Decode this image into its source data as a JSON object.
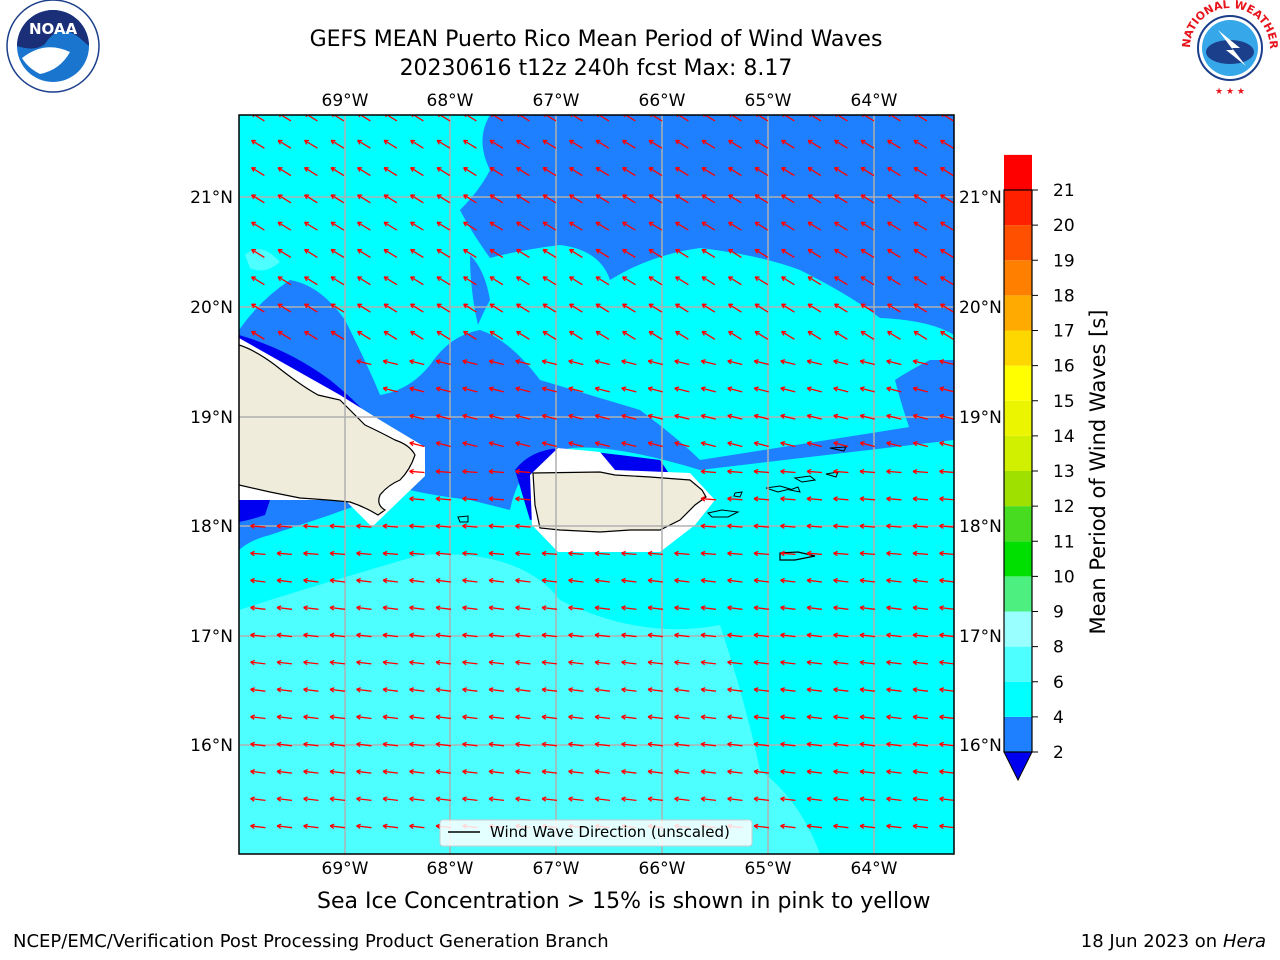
{
  "title": {
    "line1": "GEFS MEAN Puerto Rico Mean Period of Wind Waves",
    "line2": "20230616 t12z 240h fcst   Max: 8.17"
  },
  "logos": {
    "left": "noaa-logo",
    "left_text": "NOAA",
    "right": "national-weather-service-logo",
    "right_text": "NATIONAL WEATHER SERVICE"
  },
  "map": {
    "lon_labels": [
      "69°W",
      "68°W",
      "67°W",
      "66°W",
      "65°W",
      "64°W"
    ],
    "lat_labels": [
      "21°N",
      "20°N",
      "19°N",
      "18°N",
      "17°N",
      "16°N"
    ],
    "colors": {
      "c2_4": "#1e80ff",
      "c4_6": "#00ffff",
      "c6_8": "#4dffff",
      "below2": "#0000f0",
      "land": "#efecdc",
      "arrow": "#ff0000"
    },
    "legend_label": "Wind Wave Direction (unscaled)"
  },
  "colorbar": {
    "title": "Mean Period of Wind Waves [s]",
    "ticks": [
      "2",
      "4",
      "6",
      "8",
      "9",
      "10",
      "11",
      "12",
      "13",
      "14",
      "15",
      "16",
      "17",
      "18",
      "19",
      "20",
      "21"
    ],
    "colors": [
      "#1e80ff",
      "#00ffff",
      "#4dffff",
      "#99ffff",
      "#4df080",
      "#00e000",
      "#48dc20",
      "#a0e000",
      "#d0f000",
      "#ecf500",
      "#ffff00",
      "#ffd700",
      "#ffaa00",
      "#ff8000",
      "#ff5000",
      "#ff2000",
      "#ff0000"
    ],
    "under_color": "#0000f0"
  },
  "notes": {
    "sea_ice": "Sea Ice Concentration > 15% is shown in pink to yellow"
  },
  "footer": {
    "left": "NCEP/EMC/Verification Post Processing Product Generation Branch",
    "right_prefix": "18 Jun 2023 on",
    "right_host": "Hera"
  }
}
